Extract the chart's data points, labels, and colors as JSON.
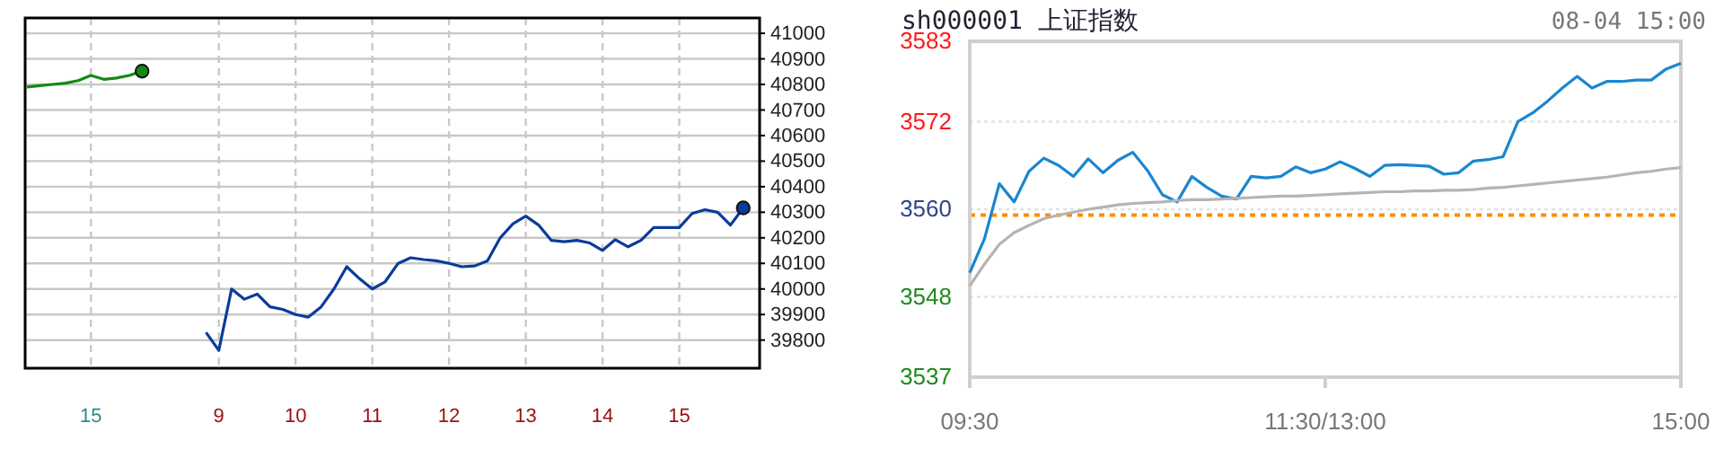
{
  "chart_data": [
    {
      "type": "line",
      "categories": [
        null,
        null,
        null,
        null,
        null,
        "15",
        null,
        null,
        null,
        null,
        null,
        null,
        null,
        null,
        null,
        "9",
        null,
        null,
        null,
        null,
        null,
        "10",
        null,
        null,
        null,
        null,
        null,
        "11",
        null,
        null,
        null,
        null,
        null,
        "12",
        null,
        null,
        null,
        null,
        null,
        "13",
        null,
        null,
        null,
        null,
        null,
        "14",
        null,
        null,
        null,
        null,
        null,
        "15",
        null,
        null,
        null,
        null,
        null,
        null
      ],
      "ylim": [
        39690,
        41060
      ],
      "yticks": [
        39800,
        39900,
        40000,
        40100,
        40200,
        40300,
        40400,
        40500,
        40600,
        40700,
        40800,
        40900,
        41000
      ],
      "grid": true,
      "series": [
        {
          "color": "#138a13",
          "values": [
            40790,
            40795,
            40800,
            40805,
            40815,
            40835,
            40820,
            40825,
            40835,
            40852,
            null,
            null,
            null,
            null,
            null,
            null,
            null,
            null,
            null,
            null,
            null,
            null,
            null,
            null,
            null,
            null,
            null,
            null,
            null,
            null,
            null,
            null,
            null,
            null,
            null,
            null,
            null,
            null,
            null,
            null,
            null,
            null,
            null,
            null,
            null,
            null,
            null,
            null,
            null,
            null,
            null,
            null,
            null,
            null,
            null,
            null,
            null,
            null
          ]
        },
        {
          "type": "scatter",
          "color": "#138a13",
          "values": [
            null,
            null,
            null,
            null,
            null,
            null,
            null,
            null,
            null,
            40852,
            null,
            null,
            null,
            null,
            null,
            null,
            null,
            null,
            null,
            null,
            null,
            null,
            null,
            null,
            null,
            null,
            null,
            null,
            null,
            null,
            null,
            null,
            null,
            null,
            null,
            null,
            null,
            null,
            null,
            null,
            null,
            null,
            null,
            null,
            null,
            null,
            null,
            null,
            null,
            null,
            null,
            null,
            null,
            null,
            null,
            null,
            null,
            null
          ]
        },
        {
          "color": "#0a3c9c",
          "values": [
            null,
            null,
            null,
            null,
            null,
            null,
            null,
            null,
            null,
            null,
            null,
            null,
            null,
            null,
            39830,
            39760,
            40000,
            39960,
            39980,
            39930,
            39920,
            39900,
            39890,
            39930,
            40000,
            40087,
            40040,
            40000,
            40028,
            40099,
            40122,
            40115,
            40110,
            40100,
            40087,
            40090,
            40110,
            40200,
            40255,
            40285,
            40250,
            40190,
            40185,
            40190,
            40180,
            40151,
            40193,
            40165,
            40190,
            40240,
            40240,
            40240,
            40295,
            40310,
            40300,
            40250,
            40317,
            null
          ]
        },
        {
          "type": "scatter",
          "color": "#0a3c9c",
          "values": [
            null,
            null,
            null,
            null,
            null,
            null,
            null,
            null,
            null,
            null,
            null,
            null,
            null,
            null,
            null,
            null,
            null,
            null,
            null,
            null,
            null,
            null,
            null,
            null,
            null,
            null,
            null,
            null,
            null,
            null,
            null,
            null,
            null,
            null,
            null,
            null,
            null,
            null,
            null,
            null,
            null,
            null,
            null,
            null,
            null,
            null,
            null,
            null,
            null,
            null,
            null,
            null,
            null,
            null,
            null,
            null,
            40317,
            null
          ]
        }
      ]
    },
    {
      "type": "line",
      "title": "sh000001 上证指数",
      "subtitle": "08-04 15:00",
      "categories": [
        "09:30",
        null,
        null,
        null,
        null,
        null,
        null,
        null,
        null,
        null,
        null,
        null,
        null,
        null,
        null,
        null,
        null,
        null,
        null,
        null,
        null,
        null,
        null,
        null,
        "11:30/13:00",
        null,
        null,
        null,
        null,
        null,
        null,
        null,
        null,
        null,
        null,
        null,
        null,
        null,
        null,
        null,
        null,
        null,
        null,
        null,
        null,
        null,
        null,
        null,
        "15:00"
      ],
      "ylim": [
        3537,
        3583
      ],
      "yticks": [
        3537,
        3548,
        3560,
        3572,
        3583
      ],
      "grid": "y",
      "ref_lines": [
        {
          "axis": "y",
          "value": 3559.2,
          "color": "#ff8c00",
          "line_style": "dotted"
        }
      ],
      "series": [
        {
          "color": "#1a86d0",
          "values": [
            3551.3,
            3556,
            3563.5,
            3561,
            3565.2,
            3567,
            3566,
            3564.5,
            3566.9,
            3565,
            3566.7,
            3567.8,
            3565.3,
            3562,
            3561,
            3564.5,
            3563,
            3561.8,
            3561.4,
            3564.5,
            3564.3,
            3564.5,
            3565.8,
            3565,
            3565.5,
            3566.5,
            3565.6,
            3564.5,
            3566,
            3566.1,
            3566,
            3565.9,
            3564.8,
            3565,
            3566.6,
            3566.8,
            3567.2,
            3572,
            3573.2,
            3574.8,
            3576.6,
            3578.2,
            3576.6,
            3577.5,
            3577.5,
            3577.7,
            3577.7,
            3579.2,
            3580
          ]
        },
        {
          "color": "#b4b4b4",
          "values": [
            3549.5,
            3552.5,
            3555.2,
            3556.8,
            3557.8,
            3558.7,
            3559.2,
            3559.6,
            3560.0,
            3560.3,
            3560.6,
            3560.8,
            3560.9,
            3561.0,
            3561.2,
            3561.3,
            3561.3,
            3561.4,
            3561.5,
            3561.6,
            3561.7,
            3561.8,
            3561.8,
            3561.9,
            3562.0,
            3562.1,
            3562.2,
            3562.3,
            3562.4,
            3562.4,
            3562.5,
            3562.5,
            3562.6,
            3562.6,
            3562.7,
            3562.9,
            3563.0,
            3563.2,
            3563.4,
            3563.6,
            3563.8,
            3564.0,
            3564.2,
            3564.4,
            3564.7,
            3565.0,
            3565.2,
            3565.5,
            3565.7
          ]
        }
      ]
    }
  ]
}
